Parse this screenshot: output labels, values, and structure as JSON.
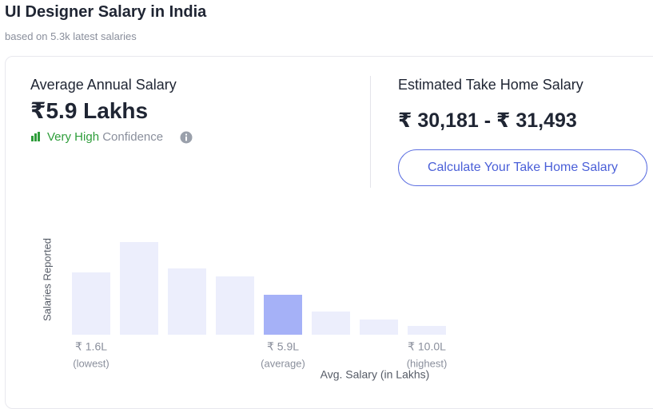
{
  "header": {
    "title": "UI Designer Salary in India",
    "subtitle": "based on 5.3k latest salaries"
  },
  "summary": {
    "average_label": "Average Annual Salary",
    "average_value": "₹5.9 Lakhs",
    "confidence_level": "Very High",
    "confidence_word": "Confidence",
    "take_home_label": "Estimated Take Home Salary",
    "take_home_value": "₹ 30,181 - ₹ 31,493",
    "button": "Calculate Your Take Home Salary"
  },
  "chart_data": {
    "type": "bar",
    "y_label": "Salaries Reported",
    "x_label": "Avg. Salary (in Lakhs)",
    "categories": [
      "₹ 1.6L",
      null,
      null,
      null,
      "₹ 5.9L",
      null,
      null,
      "₹ 10.0L"
    ],
    "category_notes": [
      "(lowest)",
      null,
      null,
      null,
      "(average)",
      null,
      null,
      "(highest)"
    ],
    "values": [
      78,
      116,
      83,
      73,
      50,
      29,
      19,
      11
    ],
    "colors": [
      "#eceefc",
      "#eceefc",
      "#eceefc",
      "#eceefc",
      "#a5b1f7",
      "#eceefc",
      "#eceefc",
      "#eceefc"
    ],
    "ylim": [
      0,
      120
    ]
  }
}
